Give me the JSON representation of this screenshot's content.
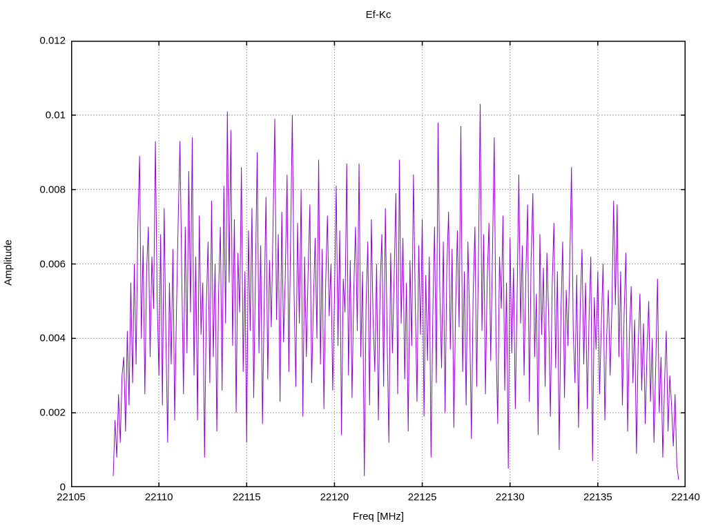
{
  "page": {
    "background": "#ffffff"
  },
  "chart_data": {
    "type": "line",
    "title": "Ef-Kc",
    "xlabel": "Freq [MHz]",
    "ylabel": "Amplitude",
    "xlim": [
      22105,
      22140
    ],
    "ylim": [
      0,
      0.012
    ],
    "x_ticks": [
      22105,
      22110,
      22115,
      22120,
      22125,
      22130,
      22135,
      22140
    ],
    "x_tick_labels": [
      "22105",
      "22110",
      "22115",
      "22120",
      "22125",
      "22130",
      "22135",
      "22140"
    ],
    "y_ticks": [
      0,
      0.002,
      0.004,
      0.006,
      0.008,
      0.01,
      0.012
    ],
    "y_tick_labels": [
      "0",
      "0.002",
      "0.004",
      "0.006",
      "0.008",
      "0.01",
      "0.012"
    ],
    "grid": true,
    "legend": "none",
    "line_color": "#9400D3",
    "grid_color": "#a8a8a8",
    "axis_color": "#000000",
    "series": [
      {
        "name": "Ef-Kc",
        "x_start": 22107.4,
        "x_step": 0.1,
        "y_scale": 0.0001,
        "y_values": [
          3,
          18,
          8,
          25,
          12,
          30,
          35,
          15,
          42,
          22,
          55,
          28,
          60,
          33,
          70,
          89,
          40,
          65,
          25,
          58,
          70,
          35,
          62,
          48,
          93,
          51,
          30,
          68,
          22,
          75,
          40,
          12,
          55,
          33,
          64,
          18,
          47,
          72,
          93,
          58,
          25,
          70,
          36,
          85,
          47,
          94,
          30,
          62,
          18,
          73,
          41,
          55,
          8,
          48,
          66,
          28,
          77,
          35,
          60,
          15,
          52,
          70,
          26,
          81,
          44,
          101,
          55,
          96,
          38,
          72,
          20,
          63,
          47,
          86,
          31,
          58,
          12,
          69,
          42,
          75,
          24,
          57,
          90,
          36,
          65,
          17,
          50,
          78,
          29,
          61,
          43,
          70,
          99,
          45,
          68,
          23,
          74,
          39,
          57,
          84,
          31,
          66,
          100,
          52,
          27,
          71,
          44,
          80,
          19,
          62,
          35,
          58,
          76,
          28,
          49,
          67,
          40,
          88,
          33,
          64,
          21,
          55,
          73,
          46,
          60,
          26,
          51,
          81,
          38,
          69,
          14,
          56,
          47,
          87,
          30,
          61,
          24,
          53,
          70,
          42,
          87,
          35,
          58,
          3,
          49,
          66,
          22,
          72,
          45,
          31,
          60,
          18,
          54,
          68,
          27,
          75,
          40,
          12,
          63,
          36,
          57,
          79,
          25,
          88,
          44,
          67,
          29,
          55,
          15,
          61,
          38,
          84,
          50,
          23,
          65,
          41,
          72,
          19,
          57,
          34,
          62,
          8,
          46,
          70,
          28,
          98,
          53,
          32,
          66,
          20,
          59,
          74,
          37,
          64,
          16,
          48,
          69,
          43,
          97,
          31,
          58,
          22,
          66,
          45,
          13,
          52,
          70,
          27,
          60,
          103,
          42,
          68,
          25,
          56,
          71,
          34,
          63,
          94,
          39,
          17,
          62,
          48,
          73,
          26,
          55,
          5,
          67,
          36,
          59,
          21,
          50,
          84,
          44,
          65,
          30,
          57,
          76,
          23,
          61,
          79,
          35,
          52,
          14,
          68,
          41,
          59,
          27,
          63,
          46,
          19,
          54,
          71,
          32,
          58,
          10,
          47,
          66,
          24,
          53,
          38,
          60,
          86,
          42,
          28,
          57,
          16,
          49,
          64,
          33,
          55,
          21,
          45,
          62,
          7,
          51,
          37,
          58,
          25,
          44,
          60,
          18,
          40,
          53,
          30,
          48,
          77,
          49,
          76,
          35,
          58,
          22,
          47,
          63,
          15,
          41,
          54,
          28,
          45,
          9,
          38,
          52,
          26,
          44,
          17,
          36,
          50,
          23,
          40,
          12,
          33,
          56,
          20,
          35,
          8,
          28,
          42,
          15,
          30,
          22,
          11,
          25,
          6,
          2
        ]
      }
    ]
  }
}
